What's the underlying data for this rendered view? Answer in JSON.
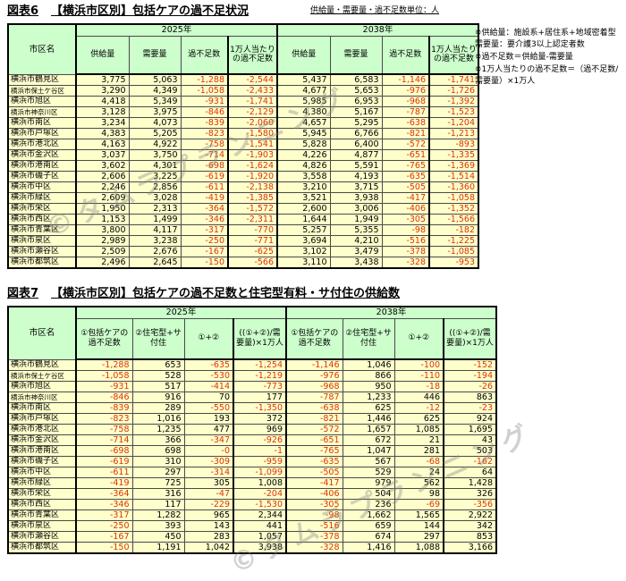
{
  "colors": {
    "header_bg": "#ccffcc",
    "row_bg": "#ffffcc",
    "negative": "#dd3300"
  },
  "watermark": {
    "text": "©タムラプランニング"
  },
  "fig6": {
    "label": "図表6",
    "title": "【横浜市区別】包括ケアの過不足状況",
    "unit_note": "供給量・需要量・過不足数単位：人",
    "notes": [
      "※供給量：施設系+居住系+地域密着型　需要量：要介護3以上認定者数",
      "※過不足数＝供給量-需要量",
      "※1万人当たりの過不足数＝（過不足数/需要量）×1万人"
    ],
    "name_header": "市区名",
    "year_groups": [
      "2025年",
      "2038年"
    ],
    "sub_headers": [
      "供給量",
      "需要量",
      "過不足数",
      "1万人当たりの過不足数"
    ],
    "rows": [
      [
        "横浜市鶴見区",
        "3,775",
        "5,063",
        "-1,288",
        "-2,544",
        "5,437",
        "6,583",
        "-1,146",
        "-1,741"
      ],
      [
        "横浜市保土ケ谷区",
        "3,290",
        "4,349",
        "-1,058",
        "-2,433",
        "4,677",
        "5,653",
        "-976",
        "-1,726"
      ],
      [
        "横浜市旭区",
        "4,418",
        "5,349",
        "-931",
        "-1,741",
        "5,985",
        "6,953",
        "-968",
        "-1,392"
      ],
      [
        "横浜市神奈川区",
        "3,128",
        "3,975",
        "-846",
        "-2,129",
        "4,380",
        "5,167",
        "-787",
        "-1,523"
      ],
      [
        "横浜市南区",
        "3,234",
        "4,073",
        "-839",
        "-2,060",
        "4,657",
        "5,295",
        "-638",
        "-1,204"
      ],
      [
        "横浜市戸塚区",
        "4,383",
        "5,205",
        "-823",
        "-1,580",
        "5,945",
        "6,766",
        "-821",
        "-1,213"
      ],
      [
        "横浜市港北区",
        "4,163",
        "4,922",
        "-758",
        "-1,541",
        "5,828",
        "6,400",
        "-572",
        "-893"
      ],
      [
        "横浜市金沢区",
        "3,037",
        "3,750",
        "-714",
        "-1,903",
        "4,226",
        "4,877",
        "-651",
        "-1,335"
      ],
      [
        "横浜市港南区",
        "3,602",
        "4,301",
        "-698",
        "-1,624",
        "4,826",
        "5,591",
        "-765",
        "-1,369"
      ],
      [
        "横浜市磯子区",
        "2,606",
        "3,225",
        "-619",
        "-1,920",
        "3,558",
        "4,193",
        "-635",
        "-1,514"
      ],
      [
        "横浜市中区",
        "2,246",
        "2,856",
        "-611",
        "-2,138",
        "3,210",
        "3,715",
        "-505",
        "-1,360"
      ],
      [
        "横浜市緑区",
        "2,609",
        "3,028",
        "-419",
        "-1,385",
        "3,521",
        "3,938",
        "-417",
        "-1,058"
      ],
      [
        "横浜市栄区",
        "1,950",
        "2,313",
        "-364",
        "-1,572",
        "2,600",
        "3,006",
        "-406",
        "-1,352"
      ],
      [
        "横浜市西区",
        "1,153",
        "1,499",
        "-346",
        "-2,311",
        "1,644",
        "1,949",
        "-305",
        "-1,566"
      ],
      [
        "横浜市青葉区",
        "3,800",
        "4,117",
        "-317",
        "-770",
        "5,257",
        "5,355",
        "-98",
        "-182"
      ],
      [
        "横浜市泉区",
        "2,989",
        "3,238",
        "-250",
        "-771",
        "3,694",
        "4,210",
        "-516",
        "-1,225"
      ],
      [
        "横浜市瀬谷区",
        "2,509",
        "2,676",
        "-167",
        "-625",
        "3,102",
        "3,479",
        "-378",
        "-1,085"
      ],
      [
        "横浜市都筑区",
        "2,496",
        "2,645",
        "-150",
        "-566",
        "3,110",
        "3,438",
        "-328",
        "-953"
      ]
    ]
  },
  "fig7": {
    "label": "図表7",
    "title": "【横浜市区別】包括ケアの過不足数と住宅型有料・サ付住の供給数",
    "name_header": "市区名",
    "year_groups": [
      "2025年",
      "2038年"
    ],
    "sub_headers": [
      "①包括ケアの過不足数",
      "②住宅型+サ付住",
      "①+②",
      "((①+②)/需要量)×1万人"
    ],
    "rows": [
      [
        "横浜市鶴見区",
        "-1,288",
        "653",
        "-635",
        "-1,254",
        "-1,146",
        "1,046",
        "-100",
        "-152"
      ],
      [
        "横浜市保土ケ谷区",
        "-1,058",
        "528",
        "-530",
        "-1,219",
        "-976",
        "866",
        "-110",
        "-194"
      ],
      [
        "横浜市旭区",
        "-931",
        "517",
        "-414",
        "-773",
        "-968",
        "950",
        "-18",
        "-26"
      ],
      [
        "横浜市神奈川区",
        "-846",
        "916",
        "70",
        "177",
        "-787",
        "1,233",
        "446",
        "863"
      ],
      [
        "横浜市南区",
        "-839",
        "289",
        "-550",
        "-1,350",
        "-638",
        "625",
        "-12",
        "-23"
      ],
      [
        "横浜市戸塚区",
        "-823",
        "1,016",
        "193",
        "372",
        "-821",
        "1,446",
        "625",
        "924"
      ],
      [
        "横浜市港北区",
        "-758",
        "1,235",
        "477",
        "969",
        "-572",
        "1,657",
        "1,085",
        "1,695"
      ],
      [
        "横浜市金沢区",
        "-714",
        "366",
        "-347",
        "-926",
        "-651",
        "672",
        "21",
        "43"
      ],
      [
        "横浜市港南区",
        "-698",
        "698",
        "-0",
        "-1",
        "-765",
        "1,047",
        "281",
        "503"
      ],
      [
        "横浜市磯子区",
        "-619",
        "310",
        "-309",
        "-959",
        "-635",
        "567",
        "-68",
        "-162"
      ],
      [
        "横浜市中区",
        "-611",
        "297",
        "-314",
        "-1,099",
        "-505",
        "529",
        "24",
        "64"
      ],
      [
        "横浜市緑区",
        "-419",
        "725",
        "305",
        "1,008",
        "-417",
        "979",
        "562",
        "1,428"
      ],
      [
        "横浜市栄区",
        "-364",
        "316",
        "-47",
        "-204",
        "-406",
        "504",
        "98",
        "326"
      ],
      [
        "横浜市西区",
        "-346",
        "117",
        "-229",
        "-1,530",
        "-305",
        "236",
        "-69",
        "-356"
      ],
      [
        "横浜市青葉区",
        "-317",
        "1,282",
        "965",
        "2,344",
        "-98",
        "1,662",
        "1,565",
        "2,922"
      ],
      [
        "横浜市泉区",
        "-250",
        "393",
        "143",
        "441",
        "-516",
        "659",
        "144",
        "342"
      ],
      [
        "横浜市瀬谷区",
        "-167",
        "450",
        "283",
        "1,057",
        "-378",
        "674",
        "297",
        "853"
      ],
      [
        "横浜市都筑区",
        "-150",
        "1,191",
        "1,042",
        "3,938",
        "-328",
        "1,416",
        "1,088",
        "3,166"
      ]
    ]
  }
}
